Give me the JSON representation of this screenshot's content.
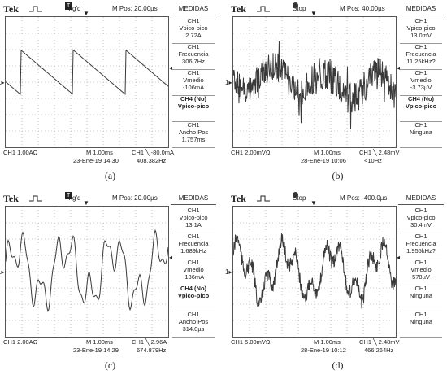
{
  "panels": [
    {
      "id": "a",
      "brand": "Tek",
      "status_icon": "trigger-badge",
      "status_badge": "T",
      "status": "Trig'd",
      "position": "M Pos: 20.00µs",
      "menu_title": "MEDIDAS",
      "measurements": [
        {
          "lines": [
            "CH1",
            "Vpico-pico",
            "2.72A"
          ]
        },
        {
          "lines": [
            "CH1",
            "Frecuencia",
            "306.7Hz"
          ]
        },
        {
          "lines": [
            "CH1",
            "Vmedio",
            "-106mA"
          ]
        },
        {
          "lines": [
            "CH4 (No)",
            "Vpico-pico"
          ],
          "bold": true
        },
        {
          "lines": [
            "CH1",
            "Ancho Pos",
            "1.757ms"
          ]
        }
      ],
      "ch_scale": "CH1  1.00AΩ",
      "timebase": "M 1.00ms",
      "trigger": "CH1 ╲ -80.0mA",
      "date": "23-Ene-19 14:30",
      "freq": "408.382Hz",
      "caption": "(a)",
      "waveform": "sawtooth"
    },
    {
      "id": "b",
      "brand": "Tek",
      "status_icon": "stop-dot",
      "status_badge": "",
      "status": "Stop",
      "position": "M Pos: 40.00µs",
      "menu_title": "MEDIDAS",
      "measurements": [
        {
          "lines": [
            "CH1",
            "Vpico-pico",
            "13.0mV"
          ]
        },
        {
          "lines": [
            "CH1",
            "Frecuencia",
            "11.25kHz?"
          ]
        },
        {
          "lines": [
            "CH1",
            "Vmedio",
            "-3.73µV"
          ]
        },
        {
          "lines": [
            "CH4 (No)",
            "Vpico-pico"
          ],
          "bold": true
        },
        {
          "lines": [
            "CH1",
            "Ninguna"
          ]
        }
      ],
      "ch_scale": "CH1  2.00mVΩ",
      "timebase": "M 1.00ms",
      "trigger": "CH1 ╲ 2.48mV",
      "date": "28-Ene-19 10:06",
      "freq": "<10Hz",
      "caption": "(b)",
      "waveform": "noise"
    },
    {
      "id": "c",
      "brand": "Tek",
      "status_icon": "trigger-badge",
      "status_badge": "T",
      "status": "Trig'd",
      "position": "M Pos: 20.00µs",
      "menu_title": "MEDIDAS",
      "measurements": [
        {
          "lines": [
            "CH1",
            "Vpico-pico",
            "13.1A"
          ]
        },
        {
          "lines": [
            "CH1",
            "Frecuencia",
            "1.689kHz"
          ]
        },
        {
          "lines": [
            "CH1",
            "Vmedio",
            "-136mA"
          ]
        },
        {
          "lines": [
            "CH4 (No)",
            "Vpico-pico"
          ],
          "bold": true
        },
        {
          "lines": [
            "CH1",
            "Ancho Pos",
            "314.0µs"
          ]
        }
      ],
      "ch_scale": "CH1  2.00AΩ",
      "timebase": "M 1.00ms",
      "trigger": "CH1 ╲ 2.96A",
      "date": "23-Ene-19 14:29",
      "freq": "674.879Hz",
      "caption": "(c)",
      "waveform": "multi"
    },
    {
      "id": "d",
      "brand": "Tek",
      "status_icon": "stop-dot",
      "status_badge": "",
      "status": "Stop",
      "position": "M Pos: -400.0µs",
      "menu_title": "MEDIDAS",
      "measurements": [
        {
          "lines": [
            "CH1",
            "Vpico-pico",
            "30.4mV"
          ]
        },
        {
          "lines": [
            "CH1",
            "Frecuencia",
            "1.955kHz?"
          ]
        },
        {
          "lines": [
            "CH1",
            "Vmedio",
            "578µV"
          ]
        },
        {
          "lines": [
            "CH1",
            "Ninguna"
          ]
        },
        {
          "lines": [
            "CH1",
            "Ninguna"
          ]
        }
      ],
      "ch_scale": "CH1  5.00mVΩ",
      "timebase": "M 1.00ms",
      "trigger": "CH1 ╲ 2.48mV",
      "date": "28-Ene-19 10:12",
      "freq": "466.264Hz",
      "caption": "(d)",
      "waveform": "multinoise"
    }
  ],
  "colors": {
    "trace": "#3a3a3a",
    "grid": "#9a9a9a",
    "border": "#555555"
  }
}
